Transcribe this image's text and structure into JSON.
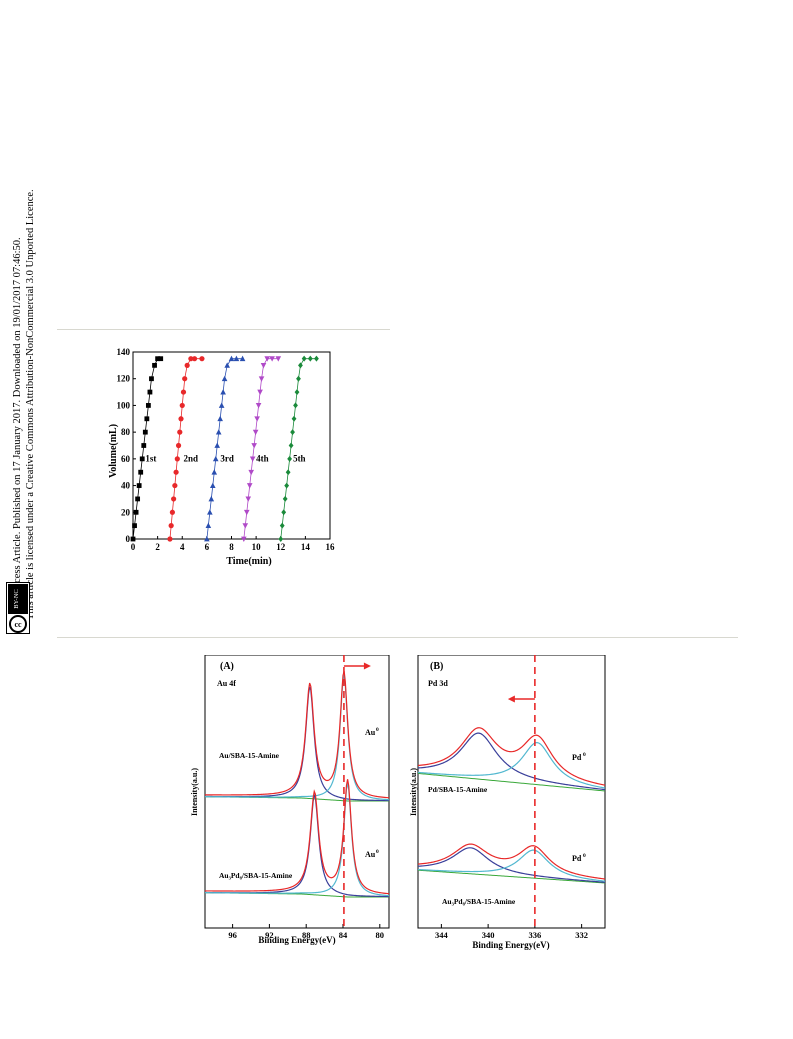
{
  "sidebar": {
    "line1": "Open Access Article. Published on 17 January 2017. Downloaded on 19/01/2017 07:46:50.",
    "line2": "This article is licensed under a Creative Commons Attribution-NonCommercial 3.0 Unported Licence.",
    "badge_cc": "cc",
    "badge_label": "BY-NC"
  },
  "chart_data": [
    {
      "type": "scatter",
      "xlabel": "Time(min)",
      "ylabel": "Volume(mL)",
      "xlim": [
        0,
        16
      ],
      "ylim": [
        0,
        140
      ],
      "xticks": [
        0,
        2,
        4,
        6,
        8,
        10,
        12,
        14,
        16
      ],
      "yticks": [
        0,
        20,
        40,
        60,
        80,
        100,
        120,
        140
      ],
      "series": [
        {
          "name": "1st",
          "color": "#000000",
          "marker": "square",
          "x": [
            0,
            0.125,
            0.25,
            0.375,
            0.5,
            0.625,
            0.75,
            0.875,
            1.0,
            1.125,
            1.25,
            1.375,
            1.5,
            1.75,
            2.0,
            2.25
          ],
          "y": [
            0,
            10,
            20,
            30,
            40,
            50,
            60,
            70,
            80,
            90,
            100,
            110,
            120,
            130,
            135,
            135
          ]
        },
        {
          "name": "2nd",
          "color": "#e8282a",
          "marker": "circle",
          "x": [
            3.0,
            3.1,
            3.2,
            3.3,
            3.4,
            3.5,
            3.6,
            3.7,
            3.8,
            3.9,
            4.0,
            4.1,
            4.2,
            4.4,
            4.7,
            5.0,
            5.6
          ],
          "y": [
            0,
            10,
            20,
            30,
            40,
            50,
            60,
            70,
            80,
            90,
            100,
            110,
            120,
            130,
            135,
            135,
            135
          ]
        },
        {
          "name": "3rd",
          "color": "#2a4fb0",
          "marker": "triangle-up",
          "x": [
            6.0,
            6.12,
            6.24,
            6.36,
            6.48,
            6.6,
            6.72,
            6.84,
            6.96,
            7.08,
            7.2,
            7.32,
            7.44,
            7.65,
            8.0,
            8.4,
            8.9
          ],
          "y": [
            0,
            10,
            20,
            30,
            40,
            50,
            60,
            70,
            80,
            90,
            100,
            110,
            120,
            130,
            135,
            135,
            135
          ]
        },
        {
          "name": "4th",
          "color": "#b04ac8",
          "marker": "triangle-down",
          "x": [
            9.0,
            9.12,
            9.24,
            9.36,
            9.48,
            9.6,
            9.72,
            9.84,
            9.96,
            10.08,
            10.2,
            10.32,
            10.44,
            10.6,
            10.9,
            11.3,
            11.8
          ],
          "y": [
            0,
            10,
            20,
            30,
            40,
            50,
            60,
            70,
            80,
            90,
            100,
            110,
            120,
            130,
            135,
            135,
            135
          ]
        },
        {
          "name": "5th",
          "color": "#1a8a3a",
          "marker": "diamond",
          "x": [
            12.0,
            12.12,
            12.24,
            12.36,
            12.48,
            12.6,
            12.72,
            12.84,
            12.96,
            13.08,
            13.2,
            13.32,
            13.44,
            13.6,
            13.9,
            14.4,
            14.9
          ],
          "y": [
            0,
            10,
            20,
            30,
            40,
            50,
            60,
            70,
            80,
            90,
            100,
            110,
            120,
            130,
            135,
            135,
            135
          ]
        }
      ]
    },
    {
      "type": "line",
      "panel": "(A)",
      "region": "Au 4f",
      "xlabel": "Binding Energy(eV)",
      "ylabel": "Intensity(a.u.)",
      "xlim": [
        99,
        79
      ],
      "xticks": [
        96,
        92,
        88,
        84,
        80
      ],
      "traces": [
        {
          "name": "Au/SBA-15-Amine",
          "peaks": [
            87.6,
            83.9
          ],
          "peak_label": "Au",
          "peak_sup": "0"
        },
        {
          "name": "Au₃Pd₈/SBA-15-Amine",
          "peaks": [
            87.1,
            83.5
          ],
          "peak_label": "Au",
          "peak_sup": "0"
        }
      ],
      "reference_line": 83.9,
      "arrow_direction": "right"
    },
    {
      "type": "line",
      "panel": "(B)",
      "region": "Pd 3d",
      "xlabel": "Binding Energy(eV)",
      "ylabel": "Intensity(a.u.)",
      "xlim": [
        346,
        330
      ],
      "xticks": [
        344,
        340,
        336,
        332
      ],
      "traces": [
        {
          "name": "Pd/SBA-15-Amine",
          "peaks": [
            340.8,
            335.8
          ],
          "peak_label": "Pd",
          "peak_sup": "0"
        },
        {
          "name": "Au₃Pd₈/SBA-15-Amine",
          "peaks": [
            341.5,
            336.1
          ],
          "peak_label": "Pd",
          "peak_sup": "0"
        }
      ],
      "reference_line": 336.0,
      "arrow_direction": "left"
    }
  ]
}
